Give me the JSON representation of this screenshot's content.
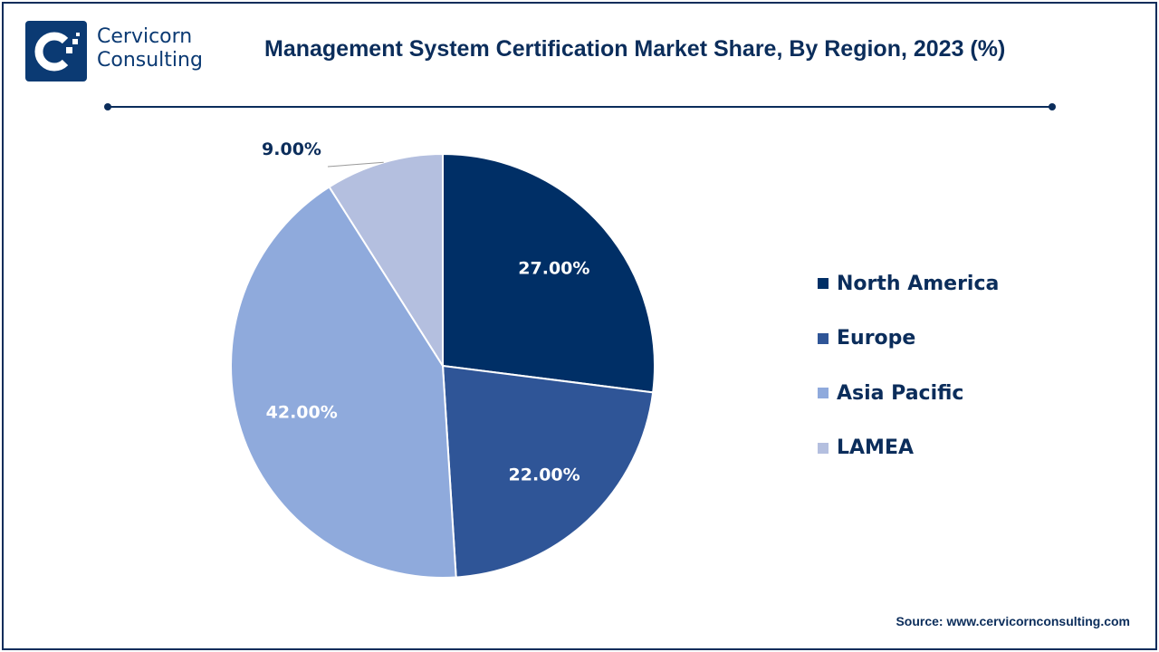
{
  "header": {
    "brand_line1": "Cervicorn",
    "brand_line2": "Consulting",
    "title": "Management System Certification Market Share, By Region, 2023 (%)"
  },
  "source": "Source: www.cervicornconsulting.com",
  "chart_data": {
    "type": "pie",
    "title": "Management System Certification Market Share, By Region, 2023 (%)",
    "legend_position": "right",
    "start_angle": "12 o'clock, clockwise",
    "slices": [
      {
        "label": "North America",
        "value": 27,
        "display": "27.00%",
        "color": "#002f66"
      },
      {
        "label": "Europe",
        "value": 22,
        "display": "22.00%",
        "color": "#2f5597"
      },
      {
        "label": "Asia Pacific",
        "value": 42,
        "display": "42.00%",
        "color": "#8faadc"
      },
      {
        "label": "LAMEA",
        "value": 9,
        "display": "9.00%",
        "color": "#b4bfdf"
      }
    ]
  }
}
